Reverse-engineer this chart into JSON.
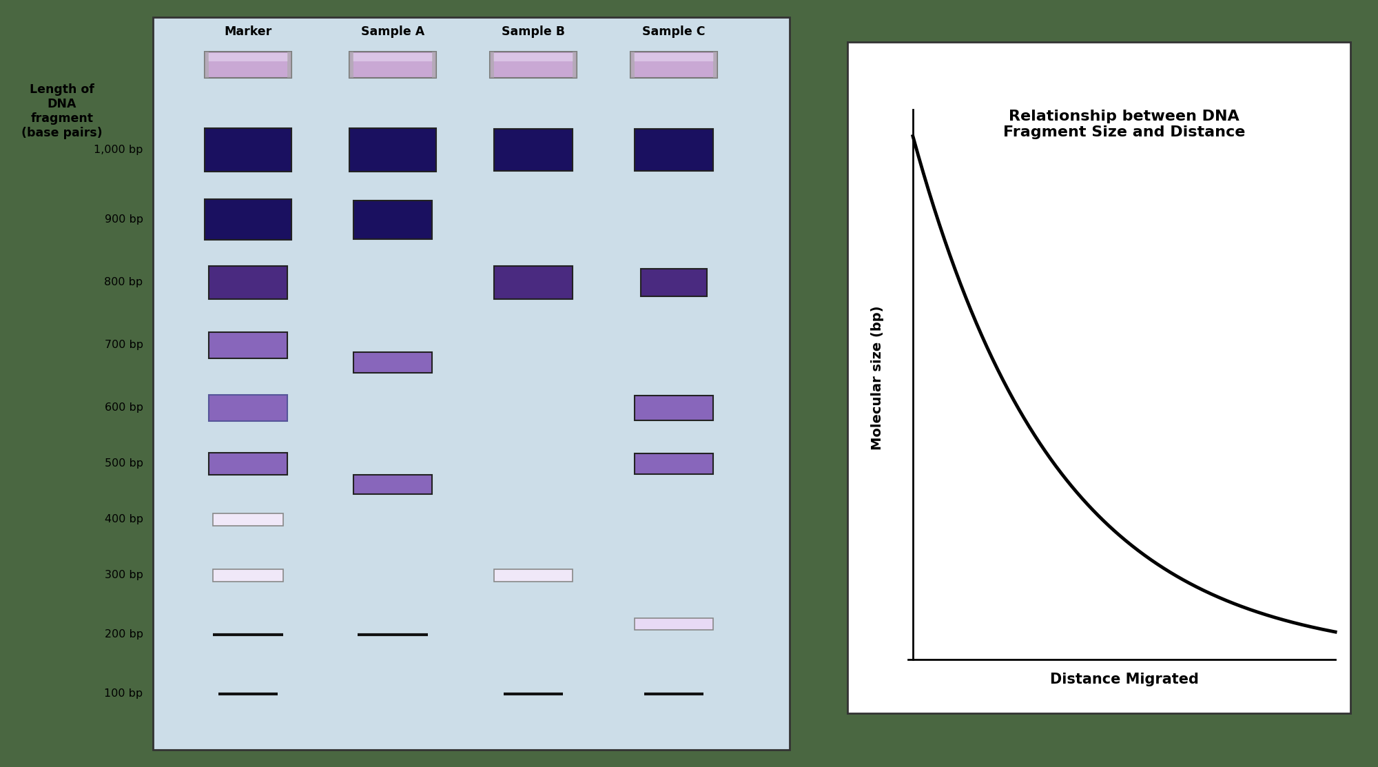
{
  "background_color": "#4a6741",
  "gel_bg": "#ccdde8",
  "gel_border": "#333333",
  "lane_labels": [
    "Marker",
    "Sample A",
    "Sample B",
    "Sample C"
  ],
  "bp_values": [
    1000,
    900,
    800,
    700,
    600,
    500,
    400,
    300,
    200,
    100
  ],
  "title_left": "Length of\nDNA\nfragment\n(base pairs)",
  "well_color": "#c9a8d4",
  "band_dark_color": "#1a1060",
  "band_medium_color": "#4a2a80",
  "band_light_color": "#8866bb",
  "band_thin_color": "#c8aad8",
  "band_black_color": "#111111",
  "graph_bg": "#ffffff",
  "graph_border": "#333333",
  "graph_title": "Relationship between DNA\nFragment Size and Distance",
  "graph_xlabel": "Distance Migrated",
  "graph_ylabel": "Molecular size (bp)"
}
